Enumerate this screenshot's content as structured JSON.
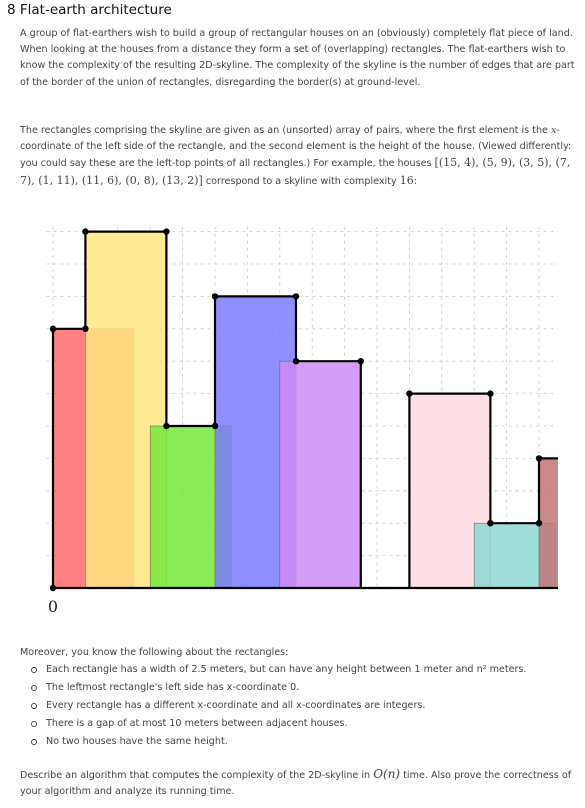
{
  "title": "8 Flat-earth architecture",
  "intro": "A group of flat-earthers wish to build a group of rectangular houses on an (obviously) completely flat piece of land. When looking at the houses from a distance they form a set of (overlapping) rectangles. The flat-earthers wish to know the complexity of the resulting 2D-skyline. The complexity of the skyline is the number of edges that are part of the border of the union of rectangles, disregarding the border(s) at ground-level.",
  "para2": {
    "t1": "The rectangles comprising the skyline are given as an (unsorted) array of pairs, where the first element is the ",
    "x": "x",
    "t2": "-coordinate of the left side of the rectangle, and the second element is the height of the house. (Viewed differently: you could say these are the left-top points of all rectangles.) For example, the houses ",
    "example": "[(15, 4), (5, 9), (3, 5), (7, 7), (1, 11), (11, 6), (0, 8), (13, 2)]",
    "t3": " correspond to a skyline with complexity ",
    "complexity": "16",
    "t4": ":"
  },
  "figure": {
    "origin_label": "0",
    "houses": [
      {
        "x": 0,
        "h": 8,
        "color": "#ff6b6b"
      },
      {
        "x": 1,
        "h": 11,
        "color": "#ffe680"
      },
      {
        "x": 3,
        "h": 5,
        "color": "#77e83a"
      },
      {
        "x": 5,
        "h": 9,
        "color": "#7b7bff"
      },
      {
        "x": 7,
        "h": 7,
        "color": "#cf8cf5"
      },
      {
        "x": 11,
        "h": 6,
        "color": "#ffd8e0"
      },
      {
        "x": 13,
        "h": 2,
        "color": "#8ed8d4"
      },
      {
        "x": 15,
        "h": 4,
        "color": "#c07575"
      }
    ]
  },
  "moreover": "Moreover, you know the following about the rectangles:",
  "facts": [
    {
      "a": "Each rectangle has a width of ",
      "m1": "2.5",
      "b": " meters, but can have any height between ",
      "m2": "1",
      "c": " meter and ",
      "m3": "n²",
      "d": " meters."
    },
    {
      "a": "The leftmost rectangle's left side has ",
      "m1": "x",
      "b": "-coordinate ",
      "m2": "0",
      "c": ".",
      "m3": "",
      "d": ""
    },
    {
      "a": "Every rectangle has a different ",
      "m1": "x",
      "b": "-coordinate and all ",
      "m2": "x",
      "c": "-coordinates are integers.",
      "m3": "",
      "d": ""
    },
    {
      "a": "There is a gap of at most ",
      "m1": "10",
      "b": " meters between adjacent houses.",
      "m2": "",
      "c": "",
      "m3": "",
      "d": ""
    },
    {
      "a": "No two houses have the same height.",
      "m1": "",
      "b": "",
      "m2": "",
      "c": "",
      "m3": "",
      "d": ""
    }
  ],
  "question": {
    "t1": "Describe an algorithm that computes the complexity of the 2D-skyline in ",
    "m": "O(n)",
    "t2": " time. Also prove the correctness of your algorithm and analyze its running time."
  }
}
